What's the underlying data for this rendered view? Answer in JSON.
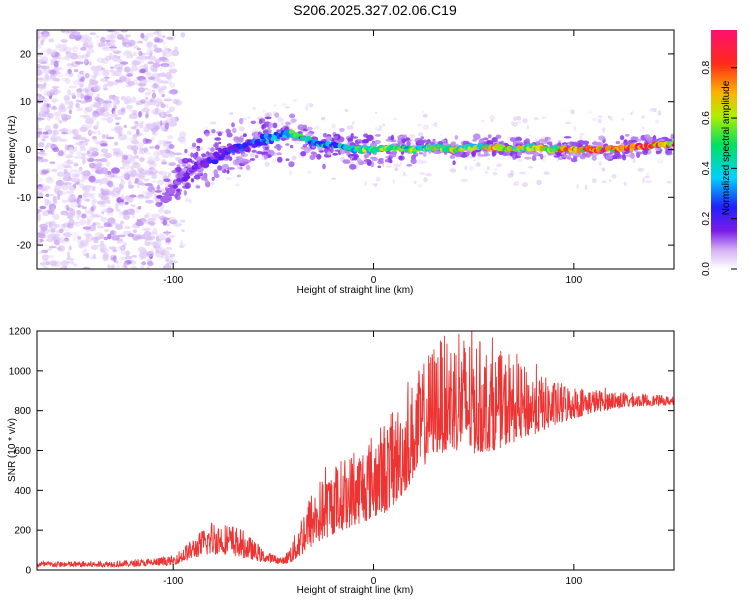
{
  "title": "S206.2025.327.02.06.C19",
  "spectrogram": {
    "type": "heatmap",
    "xlabel": "Height of straight line (km)",
    "ylabel": "Frequency (Hz)",
    "xlim": [
      -168,
      150
    ],
    "ylim": [
      -25,
      25
    ],
    "xticks": [
      -100,
      0,
      100
    ],
    "xtick_labels": [
      "-100",
      "0",
      "100"
    ],
    "yticks": [
      -20,
      -10,
      0,
      10,
      20
    ],
    "ytick_labels": [
      "-20",
      "-10",
      "0",
      "10",
      "20"
    ],
    "colorbar": {
      "label": "Normalized spectral amplitude",
      "range": [
        0,
        0.95
      ],
      "ticks": [
        0.0,
        0.2,
        0.4,
        0.6,
        0.8
      ],
      "tick_labels": [
        "0.0",
        "0.2",
        "0.4",
        "0.6",
        "0.8"
      ],
      "colormap": [
        "#ffffff",
        "#c8a0f0",
        "#7a1ce8",
        "#2020ff",
        "#00d0ff",
        "#00e060",
        "#d0f000",
        "#ff9000",
        "#ff2020",
        "#ff1070"
      ]
    },
    "signal_trace": {
      "x": [
        -105,
        -100,
        -95,
        -90,
        -85,
        -80,
        -75,
        -70,
        -65,
        -60,
        -55,
        -50,
        -45,
        -40,
        -35,
        -30,
        -25,
        -20,
        -10,
        0,
        10,
        20,
        30,
        40,
        50,
        60,
        70,
        80,
        90,
        100,
        110,
        120,
        130,
        140,
        150
      ],
      "freq": [
        -11,
        -8,
        -6,
        -4,
        -3,
        -2,
        -1,
        0,
        0.5,
        1,
        2,
        2.5,
        3,
        3,
        2.5,
        1.5,
        1,
        1,
        0,
        0,
        0.5,
        0,
        0.5,
        0,
        0.5,
        0.5,
        0,
        0.5,
        0,
        0,
        0,
        0,
        0.5,
        1,
        1
      ],
      "amplitude": [
        0.18,
        0.2,
        0.22,
        0.22,
        0.25,
        0.28,
        0.3,
        0.32,
        0.35,
        0.35,
        0.38,
        0.42,
        0.5,
        0.55,
        0.5,
        0.45,
        0.5,
        0.48,
        0.55,
        0.6,
        0.62,
        0.6,
        0.65,
        0.7,
        0.65,
        0.72,
        0.7,
        0.75,
        0.8,
        0.8,
        0.85,
        0.85,
        0.88,
        0.9,
        0.92
      ]
    }
  },
  "snr_plot": {
    "type": "line",
    "xlabel": "Height of straight line (km)",
    "ylabel": "SNR (10 * v/v)",
    "xlim": [
      -168,
      150
    ],
    "ylim": [
      0,
      1200
    ],
    "xticks": [
      -100,
      0,
      100
    ],
    "xtick_labels": [
      "-100",
      "0",
      "100"
    ],
    "yticks": [
      0,
      200,
      400,
      600,
      800,
      1000,
      1200
    ],
    "ytick_labels": [
      "0",
      "200",
      "400",
      "600",
      "800",
      "1000",
      "1200"
    ],
    "color": "#ee3333",
    "envelope": {
      "x": [
        -168,
        -140,
        -120,
        -110,
        -100,
        -95,
        -90,
        -85,
        -80,
        -75,
        -70,
        -65,
        -60,
        -55,
        -50,
        -45,
        -40,
        -35,
        -30,
        -25,
        -20,
        -15,
        -10,
        -5,
        0,
        5,
        10,
        15,
        20,
        25,
        30,
        40,
        50,
        60,
        70,
        80,
        90,
        100,
        110,
        120,
        130,
        140,
        150
      ],
      "low": [
        15,
        15,
        18,
        20,
        25,
        40,
        60,
        70,
        80,
        80,
        70,
        60,
        50,
        40,
        35,
        30,
        40,
        80,
        120,
        150,
        180,
        200,
        220,
        240,
        260,
        280,
        320,
        380,
        460,
        520,
        580,
        600,
        580,
        600,
        640,
        680,
        720,
        760,
        790,
        810,
        820,
        825,
        830
      ],
      "high": [
        45,
        45,
        50,
        60,
        70,
        120,
        160,
        210,
        260,
        240,
        230,
        200,
        150,
        100,
        80,
        60,
        160,
        320,
        420,
        480,
        530,
        570,
        600,
        650,
        700,
        750,
        800,
        880,
        960,
        1050,
        1150,
        1200,
        1180,
        1100,
        1050,
        1000,
        950,
        930,
        910,
        900,
        890,
        880,
        870
      ]
    }
  }
}
